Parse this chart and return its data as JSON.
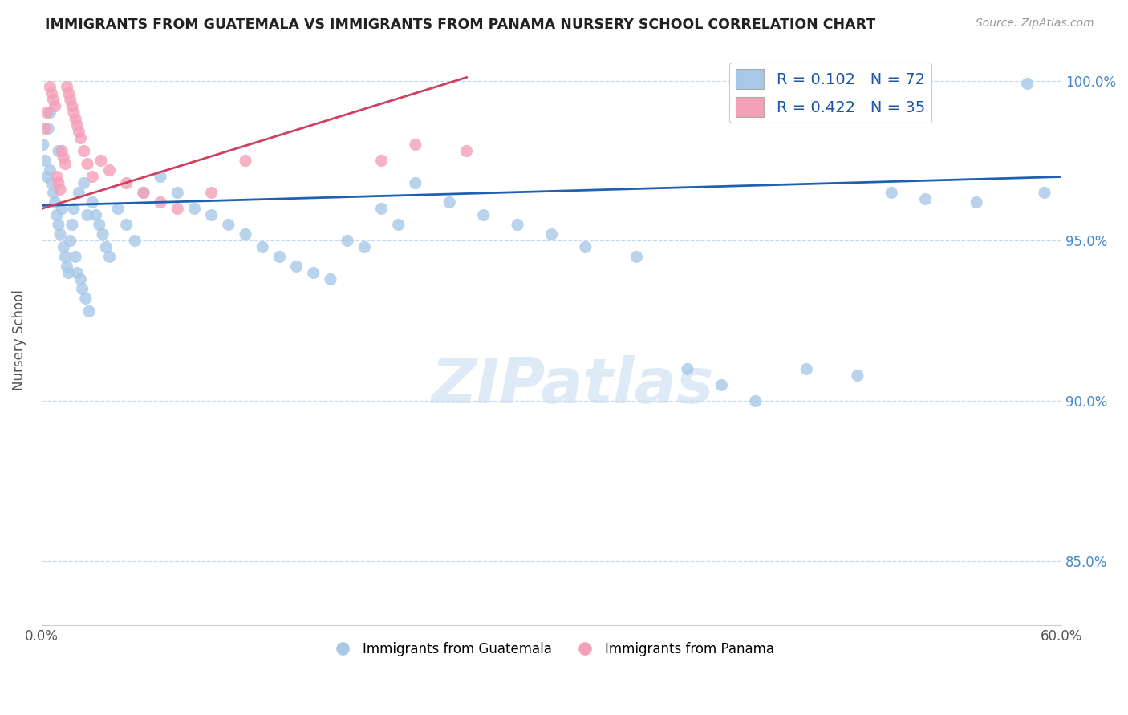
{
  "title": "IMMIGRANTS FROM GUATEMALA VS IMMIGRANTS FROM PANAMA NURSERY SCHOOL CORRELATION CHART",
  "source": "Source: ZipAtlas.com",
  "ylabel": "Nursery School",
  "xlim": [
    0.0,
    0.6
  ],
  "ylim": [
    0.83,
    1.008
  ],
  "yticks": [
    0.85,
    0.9,
    0.95,
    1.0
  ],
  "ytick_labels": [
    "85.0%",
    "90.0%",
    "95.0%",
    "100.0%"
  ],
  "watermark": "ZIPatlas",
  "legend_entry1_label": "R = 0.102   N = 72",
  "legend_entry2_label": "R = 0.422   N = 35",
  "legend_bottom1": "Immigrants from Guatemala",
  "legend_bottom2": "Immigrants from Panama",
  "guatemala_color": "#a8c8e8",
  "panama_color": "#f4a0b8",
  "trendline_guatemala_color": "#2060b0",
  "trendline_panama_color": "#d04060",
  "dot_size": 120,
  "guatemala_x": [
    0.001,
    0.002,
    0.003,
    0.004,
    0.005,
    0.005,
    0.006,
    0.007,
    0.008,
    0.009,
    0.01,
    0.01,
    0.011,
    0.012,
    0.013,
    0.014,
    0.015,
    0.016,
    0.017,
    0.018,
    0.019,
    0.02,
    0.021,
    0.022,
    0.023,
    0.024,
    0.025,
    0.026,
    0.027,
    0.028,
    0.03,
    0.032,
    0.034,
    0.036,
    0.038,
    0.04,
    0.045,
    0.05,
    0.055,
    0.06,
    0.07,
    0.08,
    0.09,
    0.1,
    0.11,
    0.12,
    0.13,
    0.14,
    0.15,
    0.16,
    0.17,
    0.18,
    0.19,
    0.2,
    0.21,
    0.22,
    0.24,
    0.26,
    0.28,
    0.3,
    0.32,
    0.35,
    0.38,
    0.4,
    0.42,
    0.45,
    0.48,
    0.5,
    0.52,
    0.55,
    0.58,
    0.59
  ],
  "guatemala_y": [
    0.98,
    0.975,
    0.97,
    0.985,
    0.99,
    0.972,
    0.968,
    0.965,
    0.962,
    0.958,
    0.978,
    0.955,
    0.952,
    0.96,
    0.948,
    0.945,
    0.942,
    0.94,
    0.95,
    0.955,
    0.96,
    0.945,
    0.94,
    0.965,
    0.938,
    0.935,
    0.968,
    0.932,
    0.958,
    0.928,
    0.962,
    0.958,
    0.955,
    0.952,
    0.948,
    0.945,
    0.96,
    0.955,
    0.95,
    0.965,
    0.97,
    0.965,
    0.96,
    0.958,
    0.955,
    0.952,
    0.948,
    0.945,
    0.942,
    0.94,
    0.938,
    0.95,
    0.948,
    0.96,
    0.955,
    0.968,
    0.962,
    0.958,
    0.955,
    0.952,
    0.948,
    0.945,
    0.91,
    0.905,
    0.9,
    0.91,
    0.908,
    0.965,
    0.963,
    0.962,
    0.999,
    0.965
  ],
  "panama_x": [
    0.002,
    0.003,
    0.005,
    0.006,
    0.007,
    0.008,
    0.009,
    0.01,
    0.011,
    0.012,
    0.013,
    0.014,
    0.015,
    0.016,
    0.017,
    0.018,
    0.019,
    0.02,
    0.021,
    0.022,
    0.023,
    0.025,
    0.027,
    0.03,
    0.035,
    0.04,
    0.05,
    0.06,
    0.07,
    0.08,
    0.1,
    0.12,
    0.2,
    0.22,
    0.25
  ],
  "panama_y": [
    0.985,
    0.99,
    0.998,
    0.996,
    0.994,
    0.992,
    0.97,
    0.968,
    0.966,
    0.978,
    0.976,
    0.974,
    0.998,
    0.996,
    0.994,
    0.992,
    0.99,
    0.988,
    0.986,
    0.984,
    0.982,
    0.978,
    0.974,
    0.97,
    0.975,
    0.972,
    0.968,
    0.965,
    0.962,
    0.96,
    0.965,
    0.975,
    0.975,
    0.98,
    0.978
  ],
  "trendline_guat_x0": 0.0,
  "trendline_guat_y0": 0.961,
  "trendline_guat_x1": 0.6,
  "trendline_guat_y1": 0.97,
  "trendline_pan_x0": 0.0,
  "trendline_pan_y0": 0.96,
  "trendline_pan_x1": 0.25,
  "trendline_pan_y1": 1.001
}
